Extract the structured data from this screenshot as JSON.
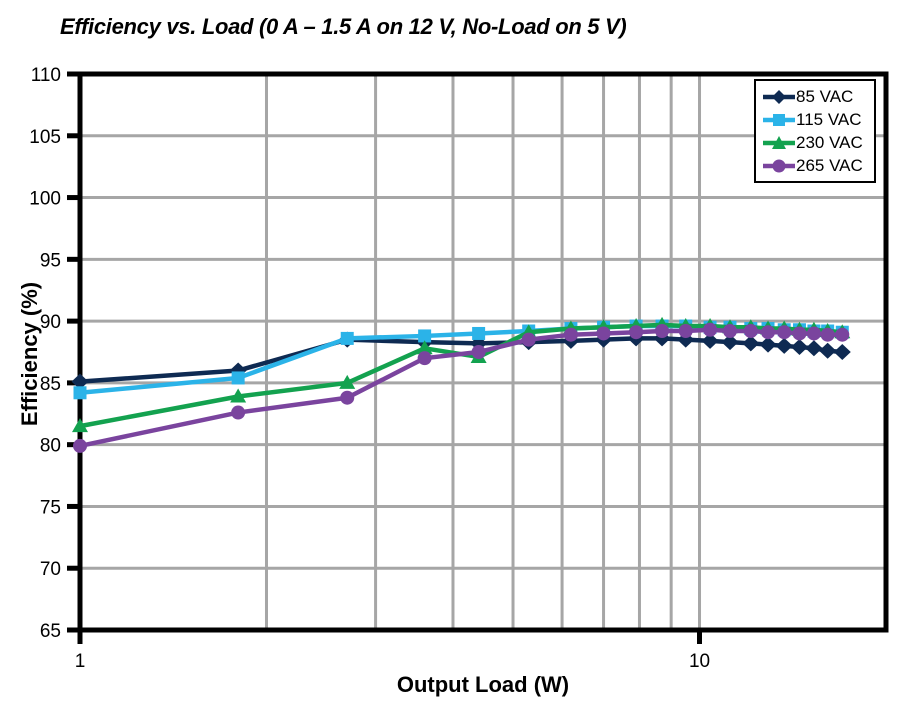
{
  "title": "Efficiency vs. Load (0 A – 1.5 A on 12 V, No-Load on 5 V)",
  "chart_data": {
    "type": "line",
    "title": "Efficiency vs. Load (0 A – 1.5 A on 12 V, No-Load on 5 V)",
    "xlabel": "Output Load (W)",
    "ylabel": "Efficiency (%)",
    "x_scale": "log",
    "xlim": [
      1,
      20
    ],
    "ylim": [
      65,
      110
    ],
    "y_ticks": [
      65,
      70,
      75,
      80,
      85,
      90,
      95,
      100,
      105,
      110
    ],
    "x_labeled_ticks": [
      1,
      10
    ],
    "x_gridlines": [
      2,
      3,
      4,
      5,
      6,
      7,
      8,
      9,
      10
    ],
    "grid": true,
    "grid_color": "#A6A6A6",
    "axis_color": "#000000",
    "legend_position": "top-right",
    "x": [
      1.0,
      1.8,
      2.7,
      3.6,
      4.4,
      5.3,
      6.2,
      7.0,
      7.9,
      8.7,
      9.5,
      10.4,
      11.2,
      12.1,
      12.9,
      13.7,
      14.5,
      15.3,
      16.1,
      17.0
    ],
    "series": [
      {
        "name": "85 VAC",
        "color": "#0E2A52",
        "marker": "diamond",
        "values": [
          85.1,
          86.0,
          88.5,
          88.3,
          88.2,
          88.3,
          88.4,
          88.5,
          88.6,
          88.6,
          88.5,
          88.4,
          88.3,
          88.2,
          88.1,
          88.0,
          87.9,
          87.8,
          87.6,
          87.5
        ]
      },
      {
        "name": "115 VAC",
        "color": "#2BB3E8",
        "marker": "square",
        "values": [
          84.2,
          85.4,
          88.6,
          88.8,
          89.0,
          89.2,
          89.4,
          89.5,
          89.6,
          89.6,
          89.6,
          89.5,
          89.5,
          89.4,
          89.4,
          89.3,
          89.3,
          89.2,
          89.2,
          89.1
        ]
      },
      {
        "name": "230 VAC",
        "color": "#13A24F",
        "marker": "triangle",
        "values": [
          81.5,
          83.9,
          85.0,
          87.8,
          87.1,
          89.1,
          89.4,
          89.5,
          89.6,
          89.7,
          89.6,
          89.6,
          89.5,
          89.5,
          89.4,
          89.4,
          89.3,
          89.3,
          89.2,
          89.1
        ]
      },
      {
        "name": "265 VAC",
        "color": "#7A449E",
        "marker": "circle",
        "values": [
          79.9,
          82.6,
          83.8,
          87.0,
          87.5,
          88.5,
          88.9,
          89.0,
          89.1,
          89.2,
          89.2,
          89.3,
          89.2,
          89.2,
          89.1,
          89.1,
          89.0,
          89.0,
          88.9,
          88.9
        ]
      }
    ]
  }
}
